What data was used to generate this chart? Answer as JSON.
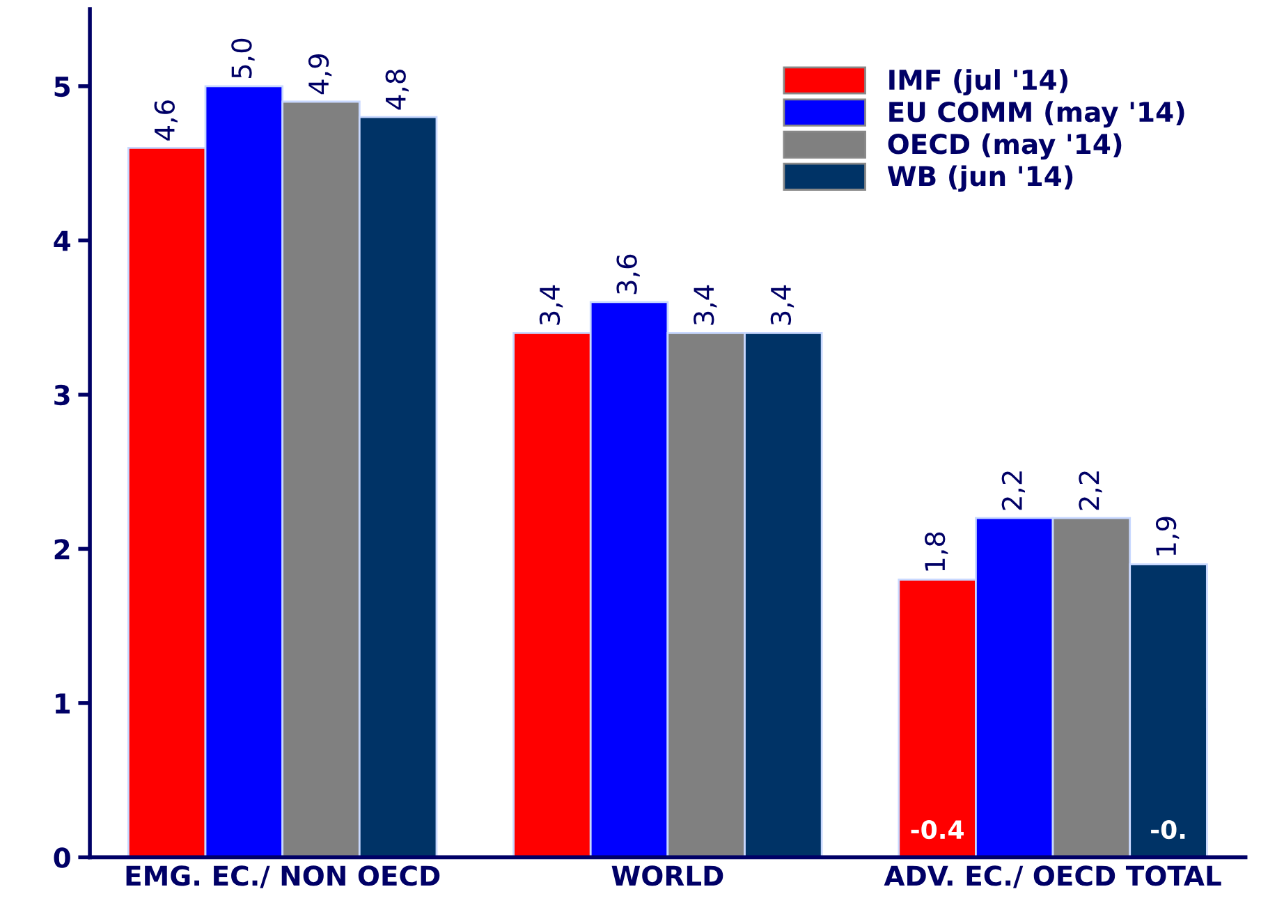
{
  "chart_data": {
    "type": "bar",
    "categories": [
      "EMG. EC./ NON OECD",
      "WORLD",
      "ADV. EC./ OECD TOTAL"
    ],
    "series": [
      {
        "name": "IMF (jul '14)",
        "color": "#ff0000",
        "values": [
          4.6,
          3.4,
          1.8
        ],
        "value_labels": [
          "4,6",
          "3,4",
          "1,8"
        ]
      },
      {
        "name": "EU COMM (may '14)",
        "color": "#0000ff",
        "values": [
          5.0,
          3.6,
          2.2
        ],
        "value_labels": [
          "5,0",
          "3,6",
          "2,2"
        ]
      },
      {
        "name": "OECD (may '14)",
        "color": "#808080",
        "values": [
          4.9,
          3.4,
          2.2
        ],
        "value_labels": [
          "4,9",
          "3,4",
          "2,2"
        ]
      },
      {
        "name": "WB (jun '14)",
        "color": "#003366",
        "values": [
          4.8,
          3.4,
          1.9
        ],
        "value_labels": [
          "4,8",
          "3,4",
          "1,9"
        ]
      }
    ],
    "ylim": [
      0,
      5.5
    ],
    "yticks": [
      0,
      1,
      2,
      3,
      4,
      5
    ],
    "grid": false,
    "legend": "top right",
    "annotations": [
      "-0.4",
      "-0."
    ]
  }
}
